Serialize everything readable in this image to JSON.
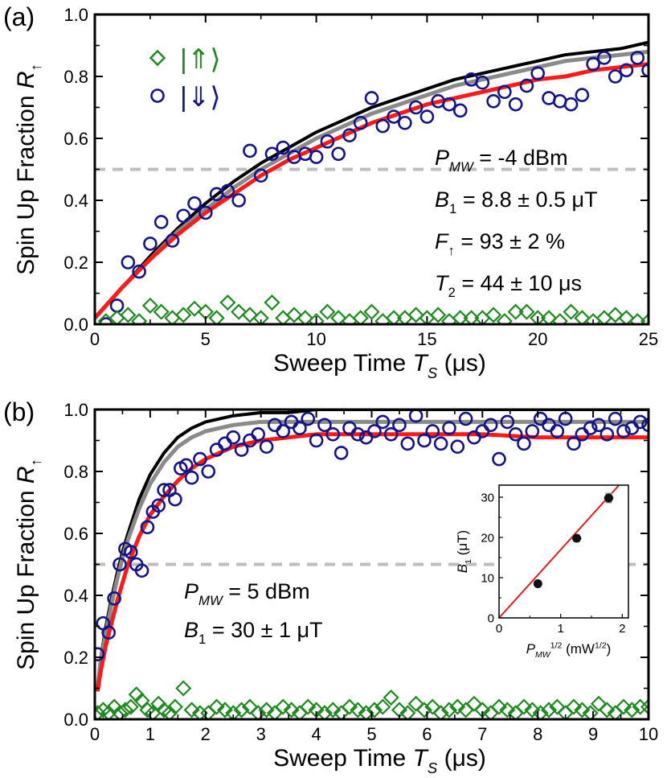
{
  "colors": {
    "data_up": "#1f8a1f",
    "data_down": "#14148a",
    "fit_red": "#ff1a1a",
    "sim_black": "#000000",
    "sim_gray": "#8a8a8a",
    "ref_dashed": "#bdbdbd",
    "inset_line": "#e02020",
    "inset_point": "#111111",
    "inset_errbar": "#9a9a9a"
  },
  "chart_data": [
    {
      "type": "scatter",
      "panel_label": "(a)",
      "xlabel": "Sweep Time T_S (μs)",
      "ylabel": "Spin Up Fraction R_↑",
      "xlim": [
        0,
        25
      ],
      "ylim": [
        0,
        1.0
      ],
      "xticks": [
        "0",
        "5",
        "10",
        "15",
        "20",
        "25"
      ],
      "yticks": [
        "0.0",
        "0.2",
        "0.4",
        "0.6",
        "0.8",
        "1.0"
      ],
      "reference_line_y": 0.5,
      "legend": {
        "placement": "top-left",
        "entries": [
          "|⇑⟩",
          "|⇓⟩"
        ]
      },
      "annotations": [
        "P_MW = -4 dBm",
        "B_1 = 8.8 ± 0.5 μT",
        "F_↑ = 93 ± 2 %",
        "T_2 = 44 ± 10 μs"
      ],
      "series": [
        {
          "name": "|⇓⟩",
          "marker": "circle",
          "x": [
            0.5,
            1.0,
            1.5,
            2.0,
            2.5,
            3.0,
            3.5,
            4.0,
            4.5,
            5.0,
            5.5,
            6.0,
            6.5,
            7.0,
            7.5,
            8.0,
            8.5,
            9.0,
            9.5,
            10.0,
            10.5,
            11.0,
            11.5,
            12.0,
            12.5,
            13.0,
            13.5,
            14.0,
            14.5,
            15.0,
            15.5,
            16.0,
            16.5,
            17.0,
            17.5,
            18.0,
            18.5,
            19.0,
            19.5,
            20.0,
            20.5,
            21.0,
            21.5,
            22.0,
            22.5,
            23.0,
            23.5,
            24.0,
            24.5,
            25.0
          ],
          "y": [
            0.0,
            0.06,
            0.2,
            0.17,
            0.26,
            0.33,
            0.27,
            0.35,
            0.39,
            0.36,
            0.42,
            0.43,
            0.4,
            0.56,
            0.48,
            0.55,
            0.57,
            0.54,
            0.55,
            0.54,
            0.59,
            0.55,
            0.61,
            0.65,
            0.73,
            0.64,
            0.67,
            0.65,
            0.7,
            0.67,
            0.72,
            0.71,
            0.69,
            0.79,
            0.78,
            0.72,
            0.75,
            0.71,
            0.77,
            0.81,
            0.73,
            0.72,
            0.71,
            0.74,
            0.84,
            0.86,
            0.8,
            0.82,
            0.86,
            0.82
          ]
        },
        {
          "name": "|⇑⟩",
          "marker": "diamond",
          "x": [
            0.5,
            1.0,
            1.5,
            2.0,
            2.5,
            3.0,
            3.5,
            4.0,
            4.5,
            5.0,
            5.5,
            6.0,
            6.5,
            7.0,
            7.5,
            8.0,
            8.5,
            9.0,
            9.5,
            10.0,
            10.5,
            11.0,
            11.5,
            12.0,
            12.5,
            13.0,
            13.5,
            14.0,
            14.5,
            15.0,
            15.5,
            16.0,
            16.5,
            17.0,
            17.5,
            18.0,
            18.5,
            19.0,
            19.5,
            20.0,
            20.5,
            21.0,
            21.5,
            22.0,
            22.5,
            23.0,
            23.5,
            24.0,
            24.5,
            25.0
          ],
          "y": [
            0.01,
            0.02,
            0.03,
            0.01,
            0.06,
            0.04,
            0.02,
            0.03,
            0.05,
            0.04,
            0.02,
            0.07,
            0.04,
            0.03,
            0.02,
            0.07,
            0.02,
            0.03,
            0.02,
            0.01,
            0.04,
            0.02,
            0.01,
            0.02,
            0.04,
            0.01,
            0.02,
            0.02,
            0.03,
            0.02,
            0.03,
            0.01,
            0.02,
            0.02,
            0.02,
            0.03,
            0.01,
            0.04,
            0.04,
            0.02,
            0.02,
            0.01,
            0.04,
            0.02,
            0.01,
            0.02,
            0.03,
            0.02,
            0.01,
            0.01
          ]
        },
        {
          "name": "",
          "kind": "line",
          "x": [
            0,
            1.25,
            2.5,
            3.75,
            5,
            6.25,
            7.5,
            8.75,
            10,
            11.25,
            12.5,
            13.75,
            15,
            16.25,
            17.5,
            18.75,
            20,
            21.25,
            22.5,
            23.75,
            25
          ],
          "y": [
            0.02,
            0.12,
            0.21,
            0.29,
            0.36,
            0.42,
            0.48,
            0.53,
            0.57,
            0.61,
            0.65,
            0.68,
            0.71,
            0.73,
            0.75,
            0.77,
            0.79,
            0.8,
            0.82,
            0.83,
            0.84
          ]
        },
        {
          "name": "",
          "kind": "line",
          "x": [
            0,
            1.25,
            2.5,
            3.75,
            5,
            6.25,
            7.5,
            8.75,
            10,
            11.25,
            12.5,
            13.75,
            15,
            16.25,
            17.5,
            18.75,
            20,
            21.25,
            22.5,
            23.75,
            25
          ],
          "y": [
            0.02,
            0.12,
            0.21,
            0.3,
            0.37,
            0.44,
            0.5,
            0.55,
            0.6,
            0.64,
            0.68,
            0.71,
            0.74,
            0.77,
            0.79,
            0.81,
            0.83,
            0.85,
            0.86,
            0.87,
            0.88
          ]
        },
        {
          "name": "",
          "kind": "line",
          "x": [
            0,
            1.25,
            2.5,
            3.75,
            5,
            6.25,
            7.5,
            8.75,
            10,
            11.25,
            12.5,
            13.75,
            15,
            16.25,
            17.5,
            18.75,
            20,
            21.25,
            22.5,
            23.75,
            25
          ],
          "y": [
            0.02,
            0.12,
            0.22,
            0.31,
            0.39,
            0.46,
            0.52,
            0.57,
            0.62,
            0.66,
            0.7,
            0.73,
            0.76,
            0.79,
            0.81,
            0.83,
            0.85,
            0.87,
            0.88,
            0.89,
            0.91
          ]
        }
      ]
    },
    {
      "type": "scatter",
      "panel_label": "(b)",
      "xlabel": "Sweep Time T_S (μs)",
      "ylabel": "Spin Up Fraction R_↑",
      "xlim": [
        0,
        10
      ],
      "ylim": [
        0,
        1.0
      ],
      "xticks": [
        "0",
        "1",
        "2",
        "3",
        "4",
        "5",
        "6",
        "7",
        "8",
        "9",
        "10"
      ],
      "yticks": [
        "0.0",
        "0.2",
        "0.4",
        "0.6",
        "0.8",
        "1.0"
      ],
      "reference_line_y": 0.5,
      "annotations": [
        "P_MW = 5 dBm",
        "B_1 = 30 ± 1 μT"
      ],
      "series": [
        {
          "name": "|⇓⟩",
          "marker": "circle",
          "x": [
            0.05,
            0.15,
            0.25,
            0.35,
            0.45,
            0.55,
            0.65,
            0.75,
            0.85,
            0.95,
            1.05,
            1.15,
            1.25,
            1.35,
            1.45,
            1.55,
            1.65,
            1.75,
            1.9,
            2.05,
            2.2,
            2.35,
            2.5,
            2.65,
            2.8,
            2.95,
            3.1,
            3.25,
            3.4,
            3.55,
            3.7,
            3.85,
            4.0,
            4.15,
            4.3,
            4.45,
            4.6,
            4.75,
            4.9,
            5.05,
            5.2,
            5.35,
            5.5,
            5.65,
            5.8,
            5.95,
            6.1,
            6.25,
            6.4,
            6.55,
            6.7,
            6.85,
            7.0,
            7.15,
            7.3,
            7.45,
            7.6,
            7.75,
            7.9,
            8.05,
            8.2,
            8.35,
            8.5,
            8.65,
            8.8,
            8.95,
            9.1,
            9.25,
            9.4,
            9.55,
            9.7,
            9.85,
            10.0
          ],
          "y": [
            0.21,
            0.31,
            0.28,
            0.39,
            0.5,
            0.55,
            0.54,
            0.5,
            0.48,
            0.62,
            0.67,
            0.69,
            0.74,
            0.74,
            0.71,
            0.81,
            0.82,
            0.78,
            0.84,
            0.8,
            0.87,
            0.89,
            0.91,
            0.87,
            0.9,
            0.92,
            0.88,
            0.95,
            0.93,
            0.96,
            0.94,
            0.97,
            0.9,
            0.95,
            0.92,
            0.86,
            0.94,
            0.92,
            0.91,
            0.93,
            0.96,
            0.92,
            0.95,
            0.89,
            0.98,
            0.9,
            0.93,
            0.89,
            0.94,
            0.88,
            0.97,
            0.91,
            0.93,
            0.95,
            0.84,
            0.96,
            0.92,
            0.89,
            0.93,
            0.97,
            0.95,
            0.93,
            0.97,
            0.89,
            0.92,
            0.94,
            0.95,
            0.92,
            0.97,
            0.93,
            0.94,
            0.96,
            0.95
          ]
        },
        {
          "name": "|⇑⟩",
          "marker": "diamond",
          "x": [
            0.05,
            0.15,
            0.25,
            0.35,
            0.45,
            0.55,
            0.65,
            0.75,
            0.85,
            0.95,
            1.05,
            1.15,
            1.25,
            1.35,
            1.45,
            1.6,
            1.75,
            1.9,
            2.05,
            2.2,
            2.35,
            2.5,
            2.65,
            2.8,
            2.95,
            3.1,
            3.25,
            3.4,
            3.55,
            3.7,
            3.85,
            4.0,
            4.15,
            4.3,
            4.45,
            4.6,
            4.75,
            4.9,
            5.05,
            5.2,
            5.35,
            5.5,
            5.65,
            5.8,
            5.95,
            6.1,
            6.25,
            6.4,
            6.55,
            6.7,
            6.85,
            7.0,
            7.15,
            7.3,
            7.45,
            7.6,
            7.75,
            7.9,
            8.05,
            8.2,
            8.35,
            8.5,
            8.65,
            8.8,
            8.95,
            9.1,
            9.25,
            9.4,
            9.55,
            9.7,
            9.85,
            10.0
          ],
          "y": [
            0.02,
            0.03,
            0.02,
            0.04,
            0.02,
            0.03,
            0.04,
            0.08,
            0.06,
            0.03,
            0.02,
            0.05,
            0.03,
            0.02,
            0.04,
            0.1,
            0.03,
            0.02,
            0.02,
            0.04,
            0.03,
            0.02,
            0.03,
            0.04,
            0.02,
            0.03,
            0.02,
            0.04,
            0.03,
            0.02,
            0.04,
            0.03,
            0.02,
            0.03,
            0.02,
            0.04,
            0.03,
            0.02,
            0.03,
            0.04,
            0.07,
            0.03,
            0.02,
            0.05,
            0.03,
            0.04,
            0.02,
            0.03,
            0.04,
            0.03,
            0.05,
            0.03,
            0.02,
            0.04,
            0.03,
            0.02,
            0.04,
            0.03,
            0.02,
            0.03,
            0.04,
            0.02,
            0.04,
            0.03,
            0.02,
            0.05,
            0.03,
            0.02,
            0.04,
            0.03,
            0.04,
            0.04
          ]
        },
        {
          "name": "",
          "kind": "line",
          "x": [
            0.05,
            0.1,
            0.2,
            0.3,
            0.4,
            0.5,
            0.6,
            0.8,
            1.0,
            1.25,
            1.5,
            1.75,
            2.0,
            2.5,
            3.0,
            3.5,
            4.0,
            5.0,
            6.0,
            7.0,
            8.0,
            9.0,
            10.0
          ],
          "y": [
            0.09,
            0.15,
            0.24,
            0.31,
            0.38,
            0.44,
            0.5,
            0.59,
            0.66,
            0.72,
            0.77,
            0.81,
            0.84,
            0.88,
            0.9,
            0.91,
            0.92,
            0.92,
            0.92,
            0.92,
            0.91,
            0.91,
            0.91
          ]
        },
        {
          "name": "",
          "kind": "line",
          "x": [
            0.05,
            0.1,
            0.2,
            0.3,
            0.4,
            0.5,
            0.6,
            0.8,
            1.0,
            1.25,
            1.5,
            1.75,
            2.0,
            2.5,
            3.0,
            3.5,
            4.0,
            5.0,
            6.0,
            7.0,
            8.0,
            9.0,
            10.0
          ],
          "y": [
            0.1,
            0.18,
            0.28,
            0.37,
            0.45,
            0.52,
            0.58,
            0.68,
            0.76,
            0.83,
            0.88,
            0.91,
            0.93,
            0.95,
            0.96,
            0.96,
            0.96,
            0.96,
            0.96,
            0.96,
            0.96,
            0.96,
            0.96
          ]
        },
        {
          "name": "",
          "kind": "line",
          "x": [
            0.05,
            0.1,
            0.2,
            0.3,
            0.4,
            0.5,
            0.6,
            0.8,
            1.0,
            1.25,
            1.5,
            1.75,
            2.0,
            2.5,
            3.0,
            3.5,
            4.0,
            5.0,
            6.0,
            7.0,
            8.0,
            9.0,
            10.0
          ],
          "y": [
            0.1,
            0.19,
            0.3,
            0.39,
            0.47,
            0.54,
            0.6,
            0.71,
            0.79,
            0.86,
            0.91,
            0.94,
            0.96,
            0.98,
            0.99,
            0.99,
            1.0,
            1.0,
            1.0,
            1.0,
            1.0,
            1.0,
            1.0
          ]
        }
      ]
    },
    {
      "type": "scatter",
      "panel_label": "",
      "inset": true,
      "xlabel": "P_MW^1/2 (mW^1/2)",
      "ylabel": "B_1 (μT)",
      "xlim": [
        0,
        2.1
      ],
      "ylim": [
        0,
        33
      ],
      "xticks": [
        "0",
        "1",
        "2"
      ],
      "yticks": [
        "0",
        "10",
        "20",
        "30"
      ],
      "series": [
        {
          "name": "",
          "marker": "filled-circle",
          "x": [
            0.63,
            1.26,
            1.78
          ],
          "y": [
            8.5,
            19.8,
            29.8
          ],
          "yerr": [
            0.8,
            1.0,
            1.3
          ],
          "xerr": [
            0.05,
            0.08,
            0.08
          ]
        },
        {
          "name": "",
          "kind": "line",
          "x": [
            0,
            2.1
          ],
          "y": [
            0,
            35.6
          ]
        }
      ]
    }
  ]
}
